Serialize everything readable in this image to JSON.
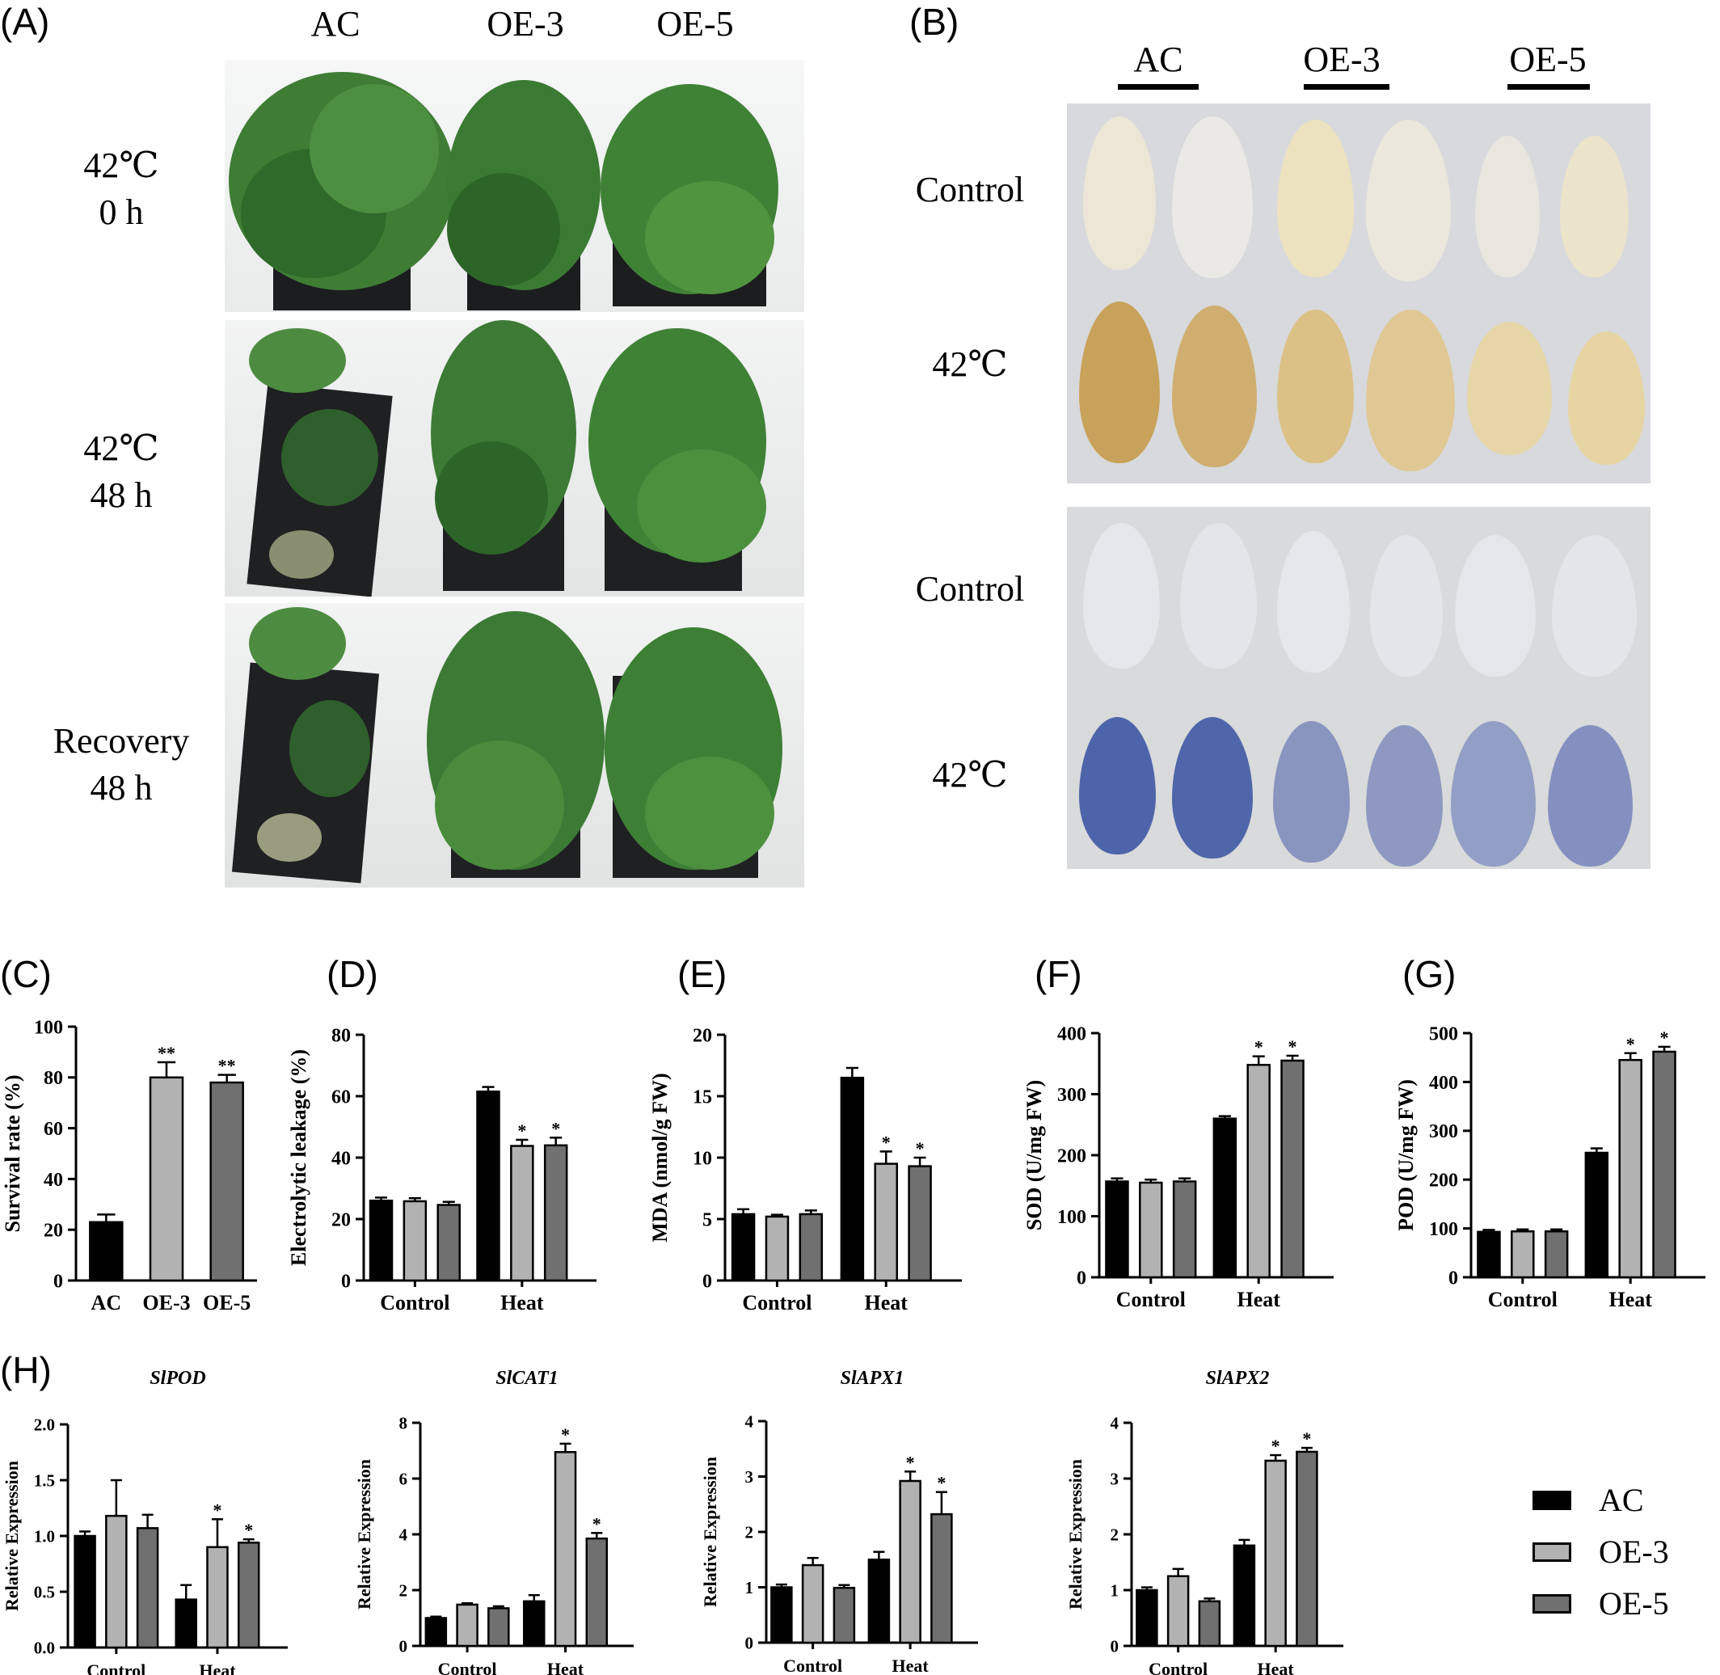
{
  "panel_labels": {
    "A": "(A)",
    "B": "(B)",
    "C": "(C)",
    "D": "(D)",
    "E": "(E)",
    "F": "(F)",
    "G": "(G)",
    "H": "(H)"
  },
  "panelA": {
    "columns": [
      "AC",
      "OE-3",
      "OE-5"
    ],
    "rows": [
      {
        "l1": "42℃",
        "l2": "0 h"
      },
      {
        "l1": "42℃",
        "l2": "48 h"
      },
      {
        "l1": "Recovery",
        "l2": "48 h"
      }
    ]
  },
  "panelB": {
    "columns": [
      "AC",
      "OE-3",
      "OE-5"
    ],
    "rows": [
      "Control",
      "42℃",
      "Control",
      "42℃"
    ]
  },
  "colors": {
    "AC": "#000000",
    "OE-3": "#b2b2b2",
    "OE-5": "#707070"
  },
  "legend": [
    "AC",
    "OE-3",
    "OE-5"
  ],
  "chart_data": [
    {
      "id": "C",
      "type": "bar",
      "ylabel": "Survival rate (%)",
      "ylim": [
        0,
        100
      ],
      "yticks": [
        0,
        20,
        40,
        60,
        80,
        100
      ],
      "categories": [
        "AC",
        "OE-3",
        "OE-5"
      ],
      "values": [
        23,
        80,
        78
      ],
      "errors": [
        3,
        6,
        3
      ],
      "sig": [
        "",
        "**",
        "**"
      ]
    },
    {
      "id": "D",
      "type": "bar",
      "ylabel": "Electrolytic leakage (%)",
      "ylim": [
        0,
        80
      ],
      "yticks": [
        0,
        20,
        40,
        60,
        80
      ],
      "categories": [
        "Control",
        "Heat"
      ],
      "series": [
        {
          "values": [
            26,
            61.5
          ],
          "errors": [
            1,
            1.5
          ]
        },
        {
          "values": [
            25.8,
            43.8
          ],
          "errors": [
            1,
            2
          ]
        },
        {
          "values": [
            24.6,
            44
          ],
          "errors": [
            1,
            2.5
          ]
        }
      ],
      "sig": [
        [
          "",
          ""
        ],
        [
          "",
          "*"
        ],
        [
          "",
          "*"
        ]
      ]
    },
    {
      "id": "E",
      "type": "bar",
      "ylabel": "MDA (nmol/g FW)",
      "ylim": [
        0,
        20
      ],
      "yticks": [
        0,
        5,
        10,
        15,
        20
      ],
      "categories": [
        "Control",
        "Heat"
      ],
      "series": [
        {
          "values": [
            5.4,
            16.5
          ],
          "errors": [
            0.4,
            0.8
          ]
        },
        {
          "values": [
            5.2,
            9.5
          ],
          "errors": [
            0.15,
            1
          ]
        },
        {
          "values": [
            5.4,
            9.3
          ],
          "errors": [
            0.3,
            0.7
          ]
        }
      ],
      "sig": [
        [
          "",
          ""
        ],
        [
          "",
          "*"
        ],
        [
          "",
          "*"
        ]
      ]
    },
    {
      "id": "F",
      "type": "bar",
      "ylabel": "SOD (U/mg FW)",
      "ylim": [
        0,
        400
      ],
      "yticks": [
        0,
        100,
        200,
        300,
        400
      ],
      "categories": [
        "Control",
        "Heat"
      ],
      "series": [
        {
          "values": [
            157,
            260
          ],
          "errors": [
            5,
            4
          ]
        },
        {
          "values": [
            155,
            348
          ],
          "errors": [
            5,
            14
          ]
        },
        {
          "values": [
            157,
            355
          ],
          "errors": [
            5,
            8
          ]
        }
      ],
      "sig": [
        [
          "",
          ""
        ],
        [
          "",
          "*"
        ],
        [
          "",
          "*"
        ]
      ]
    },
    {
      "id": "G",
      "type": "bar",
      "ylabel": "POD (U/mg FW)",
      "ylim": [
        0,
        500
      ],
      "yticks": [
        0,
        100,
        200,
        300,
        400,
        500
      ],
      "categories": [
        "Control",
        "Heat"
      ],
      "series": [
        {
          "values": [
            93,
            255
          ],
          "errors": [
            4,
            9
          ]
        },
        {
          "values": [
            94,
            445
          ],
          "errors": [
            4,
            14
          ]
        },
        {
          "values": [
            94,
            462
          ],
          "errors": [
            4,
            10
          ]
        }
      ],
      "sig": [
        [
          "",
          ""
        ],
        [
          "",
          "*"
        ],
        [
          "",
          "*"
        ]
      ]
    },
    {
      "id": "H1",
      "type": "bar",
      "title": "SlPOD",
      "ylabel": "Relative Expression",
      "ylim": [
        0,
        2
      ],
      "yticks": [
        "0.0",
        "0.5",
        "1.0",
        "1.5",
        "2.0"
      ],
      "categories": [
        "Control",
        "Heat"
      ],
      "series": [
        {
          "values": [
            1.0,
            0.43
          ],
          "errors": [
            0.04,
            0.13
          ]
        },
        {
          "values": [
            1.18,
            0.9
          ],
          "errors": [
            0.32,
            0.25
          ]
        },
        {
          "values": [
            1.07,
            0.94
          ],
          "errors": [
            0.12,
            0.03
          ]
        }
      ],
      "sig": [
        [
          "",
          ""
        ],
        [
          "",
          "*"
        ],
        [
          "",
          "*"
        ]
      ]
    },
    {
      "id": "H2",
      "type": "bar",
      "title": "SlCAT1",
      "ylabel": "Relative Expression",
      "ylim": [
        0,
        8
      ],
      "yticks": [
        0,
        2,
        4,
        6,
        8
      ],
      "categories": [
        "Control",
        "Heat"
      ],
      "series": [
        {
          "values": [
            1.0,
            1.6
          ],
          "errors": [
            0.05,
            0.22
          ]
        },
        {
          "values": [
            1.48,
            6.95
          ],
          "errors": [
            0.05,
            0.3
          ]
        },
        {
          "values": [
            1.35,
            3.85
          ],
          "errors": [
            0.07,
            0.2
          ]
        }
      ],
      "sig": [
        [
          "",
          ""
        ],
        [
          "",
          "*"
        ],
        [
          "",
          "*"
        ]
      ]
    },
    {
      "id": "H3",
      "type": "bar",
      "title": "SlAPX1",
      "ylabel": "Relative Expression",
      "ylim": [
        0,
        4
      ],
      "yticks": [
        0,
        1,
        2,
        3,
        4
      ],
      "categories": [
        "Control",
        "Heat"
      ],
      "series": [
        {
          "values": [
            1.0,
            1.5
          ],
          "errors": [
            0.05,
            0.14
          ]
        },
        {
          "values": [
            1.4,
            2.92
          ],
          "errors": [
            0.13,
            0.17
          ]
        },
        {
          "values": [
            0.99,
            2.32
          ],
          "errors": [
            0.05,
            0.4
          ]
        }
      ],
      "sig": [
        [
          "",
          ""
        ],
        [
          "",
          "*"
        ],
        [
          "",
          "*"
        ]
      ]
    },
    {
      "id": "H4",
      "type": "bar",
      "title": "SlAPX2",
      "ylabel": "Relative Expression",
      "ylim": [
        0,
        4
      ],
      "yticks": [
        0,
        1,
        2,
        3,
        4
      ],
      "categories": [
        "Control",
        "Heat"
      ],
      "series": [
        {
          "values": [
            1.0,
            1.8
          ],
          "errors": [
            0.05,
            0.1
          ]
        },
        {
          "values": [
            1.25,
            3.32
          ],
          "errors": [
            0.13,
            0.1
          ]
        },
        {
          "values": [
            0.8,
            3.48
          ],
          "errors": [
            0.05,
            0.07
          ]
        }
      ],
      "sig": [
        [
          "",
          ""
        ],
        [
          "",
          "*"
        ],
        [
          "",
          "*"
        ]
      ]
    }
  ]
}
